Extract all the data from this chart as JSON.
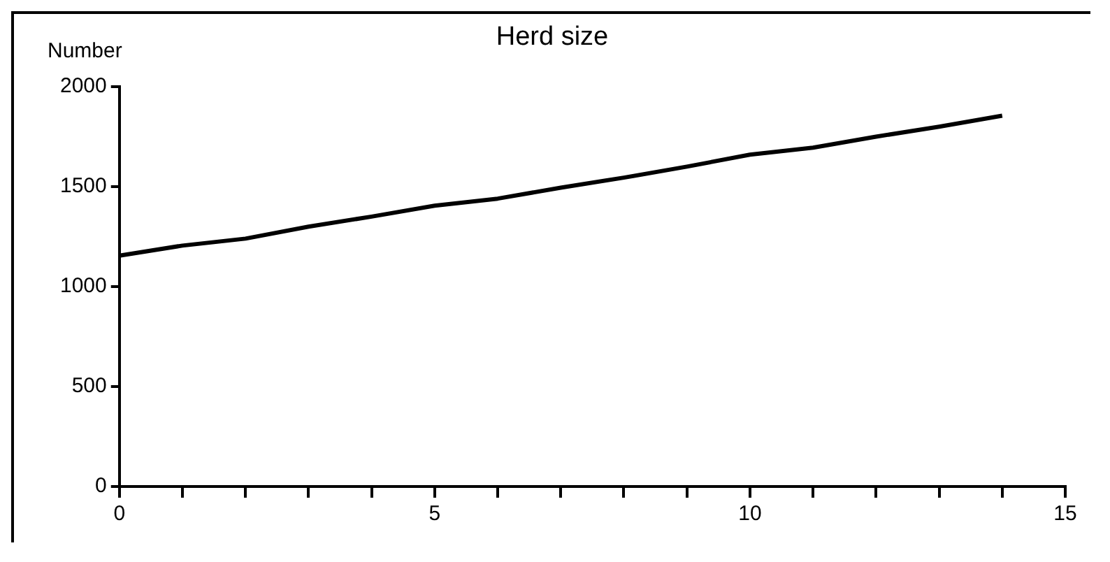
{
  "chart_data": {
    "type": "line",
    "title": "Herd size",
    "ylabel": "Number",
    "x": [
      0,
      1,
      2,
      3,
      4,
      5,
      6,
      7,
      8,
      9,
      10,
      11,
      12,
      13,
      14
    ],
    "series": [
      {
        "color": "#000000",
        "values": [
          1155,
          1205,
          1240,
          1300,
          1350,
          1405,
          1440,
          1495,
          1545,
          1600,
          1660,
          1695,
          1750,
          1800,
          1855
        ]
      }
    ],
    "xlim": [
      0,
      15
    ],
    "xticks": [
      0,
      {
        "value": 1,
        "label": null
      },
      {
        "value": 2,
        "label": null
      },
      {
        "value": 3,
        "label": null
      },
      {
        "value": 4,
        "label": null
      },
      5,
      {
        "value": 6,
        "label": null
      },
      {
        "value": 7,
        "label": null
      },
      {
        "value": 8,
        "label": null
      },
      {
        "value": 9,
        "label": null
      },
      10,
      {
        "value": 11,
        "label": null
      },
      {
        "value": 12,
        "label": null
      },
      {
        "value": 13,
        "label": null
      },
      {
        "value": 14,
        "label": null
      },
      15
    ],
    "ylim": [
      0,
      2000
    ],
    "yticks": [
      0,
      500,
      1000,
      1500,
      2000
    ],
    "grid": false,
    "legend": false,
    "marker": "none",
    "line_style": "solid"
  }
}
